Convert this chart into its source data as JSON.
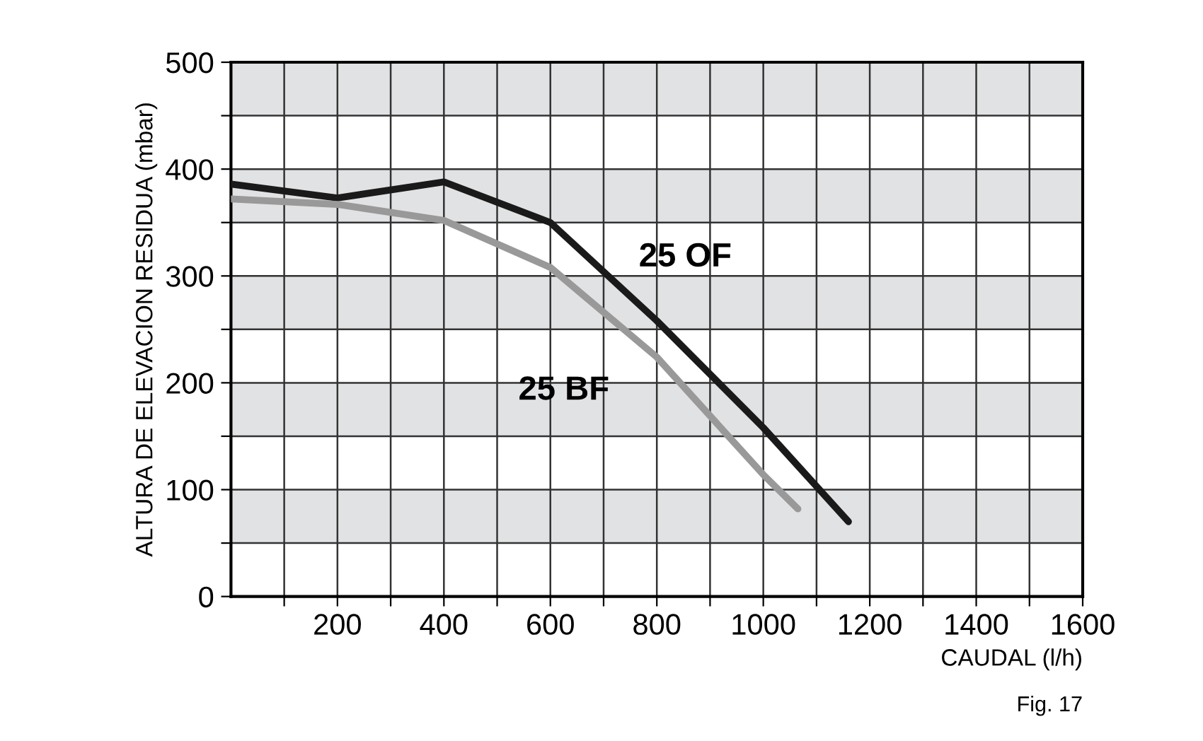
{
  "chart_data": {
    "type": "line",
    "xlabel": "CAUDAL (l/h)",
    "ylabel": "ALTURA DE ELEVACION RESIDUA (mbar)",
    "series": [
      {
        "name": "25 OF",
        "color": "#1a1a1a",
        "x": [
          0,
          200,
          400,
          600,
          800,
          1000,
          1160
        ],
        "values": [
          386,
          373,
          388,
          350,
          258,
          158,
          70
        ]
      },
      {
        "name": "25 BF",
        "color": "#999999",
        "x": [
          0,
          200,
          400,
          600,
          800,
          1000,
          1065
        ],
        "values": [
          372,
          367,
          352,
          308,
          224,
          114,
          82
        ]
      }
    ],
    "xlim": [
      0,
      1600
    ],
    "ylim": [
      0,
      500
    ],
    "xticks": [
      {
        "value": 100,
        "label": null
      },
      200,
      {
        "value": 300,
        "label": null
      },
      400,
      {
        "value": 500,
        "label": null
      },
      600,
      {
        "value": 700,
        "label": null
      },
      800,
      {
        "value": 900,
        "label": null
      },
      1000,
      {
        "value": 1100,
        "label": null
      },
      1200,
      {
        "value": 1300,
        "label": null
      },
      1400,
      {
        "value": 1500,
        "label": null
      },
      1600
    ],
    "yticks": [
      0,
      {
        "value": 50,
        "label": null
      },
      100,
      {
        "value": 150,
        "label": null
      },
      200,
      {
        "value": 250,
        "label": null
      },
      300,
      {
        "value": 350,
        "label": null
      },
      400,
      {
        "value": 450,
        "label": null
      },
      500
    ],
    "grid": true,
    "bands": [
      {
        "axis": "y",
        "from": 50,
        "to": 100,
        "color": "#e1e2e4"
      },
      {
        "axis": "y",
        "from": 150,
        "to": 200,
        "color": "#e1e2e4"
      },
      {
        "axis": "y",
        "from": 250,
        "to": 300,
        "color": "#e1e2e4"
      },
      {
        "axis": "y",
        "from": 350,
        "to": 400,
        "color": "#e1e2e4"
      },
      {
        "axis": "y",
        "from": 450,
        "to": 500,
        "color": "#e1e2e4"
      }
    ],
    "annotations": [
      "Fig. 17"
    ]
  }
}
